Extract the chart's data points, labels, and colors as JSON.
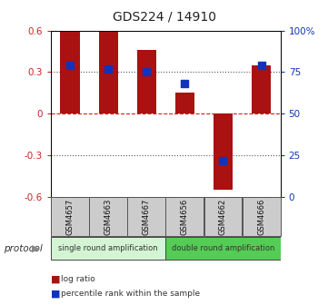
{
  "title": "GDS224 / 14910",
  "samples": [
    "GSM4657",
    "GSM4663",
    "GSM4667",
    "GSM4656",
    "GSM4662",
    "GSM4666"
  ],
  "log_ratios": [
    0.59,
    0.59,
    0.46,
    0.15,
    -0.55,
    0.35
  ],
  "percentile_ranks": [
    0.35,
    0.32,
    0.3,
    0.22,
    -0.34,
    0.35
  ],
  "ylim": [
    -0.6,
    0.6
  ],
  "yticks_left": [
    -0.6,
    -0.3,
    0,
    0.3,
    0.6
  ],
  "ytick_labels_left": [
    "-0.6",
    "-0.3",
    "0",
    "0.3",
    "0.6"
  ],
  "ytick_labels_right": [
    "0",
    "25",
    "50",
    "75",
    "100%"
  ],
  "hlines_dotted": [
    -0.3,
    0.3
  ],
  "hline_dashed": 0,
  "bar_color": "#aa1111",
  "bar_width": 0.5,
  "blue_color": "#1133bb",
  "blue_size": 28,
  "group1_label": "single round amplification",
  "group2_label": "double round amplification",
  "group1_color": "#d4f5d4",
  "group2_color": "#55cc55",
  "protocol_label": "protocol",
  "legend_red": "log ratio",
  "legend_blue": "percentile rank within the sample",
  "axis_color_left": "#cc2222",
  "axis_color_right": "#1133bb",
  "bg_color": "#ffffff",
  "xlabel_box_color": "#cccccc",
  "xlabel_box_edge": "#555555",
  "dotted_color": "#555555",
  "dashed_color": "#cc2222",
  "figsize": [
    3.61,
    3.36
  ],
  "dpi": 100
}
